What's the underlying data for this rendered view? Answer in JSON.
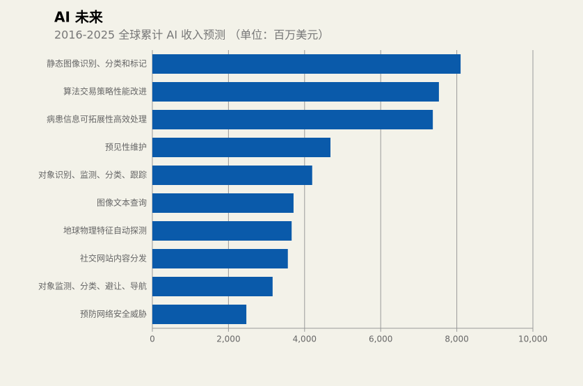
{
  "chart_data": {
    "type": "bar",
    "orientation": "horizontal",
    "title": "AI 未来",
    "subtitle": "2016-2025 全球累计 AI 收入预测 （单位：百万美元）",
    "categories": [
      "静态图像识别、分类和标记",
      "算法交易策略性能改进",
      "病患信息可拓展性高效处理",
      "预见性维护",
      "对象识别、监测、分类、跟踪",
      "图像文本查询",
      "地球物理特征自动探测",
      "社交网站内容分发",
      "对象监测、分类、避让、导航",
      "预防网络安全威胁"
    ],
    "values": [
      8100,
      7530,
      7370,
      4680,
      4200,
      3710,
      3660,
      3560,
      3160,
      2470
    ],
    "color": "#0a5aaa",
    "xlim": [
      0,
      10000
    ],
    "xticks": [
      0,
      {
        "value": 2000,
        "label": "2,000"
      },
      {
        "value": 4000,
        "label": "4,000"
      },
      {
        "value": 6000,
        "label": "6,000"
      },
      {
        "value": 8000,
        "label": "8,000"
      },
      {
        "value": 10000,
        "label": "10,000"
      }
    ],
    "grid": true
  }
}
